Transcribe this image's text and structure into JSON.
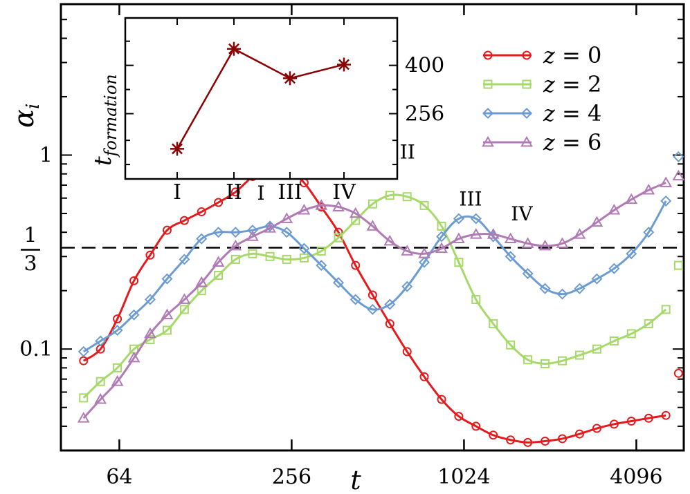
{
  "chart_data": [
    {
      "type": "line",
      "xlabel": "t",
      "ylabel": "α_i",
      "xscale": "log2",
      "yscale": "log",
      "xlim": [
        40,
        6000
      ],
      "ylim": [
        0.03,
        6
      ],
      "x_ticks": [
        64,
        256,
        1024,
        4096
      ],
      "x_tick_labels": [
        "64",
        "256",
        "1024",
        "4096"
      ],
      "y_tick_labels": [
        {
          "value": 1,
          "label": "1"
        },
        {
          "value": 0.333,
          "num": "1",
          "den": "3"
        },
        {
          "value": 0.1,
          "label": "0.1"
        }
      ],
      "reference_line": {
        "value": 0.333,
        "style": "dashed"
      },
      "legend_position": "top-right",
      "series": [
        {
          "name": "z = 0",
          "var": "z",
          "val": "0",
          "color": "#e41a1c",
          "marker": "circle",
          "x": [
            48,
            55,
            63,
            72,
            82,
            94,
            108,
            124,
            142,
            163,
            187,
            215,
            246,
            283,
            325,
            373,
            428,
            491,
            564,
            648,
            744,
            855,
            982,
            1128,
            1296,
            1489,
            1711,
            1966,
            2259,
            2595,
            2982,
            3426,
            3936,
            4523,
            5197
          ],
          "y": [
            0.087,
            0.1,
            0.143,
            0.225,
            0.305,
            0.41,
            0.46,
            0.51,
            0.57,
            0.645,
            0.775,
            0.87,
            0.86,
            0.72,
            0.54,
            0.4,
            0.27,
            0.19,
            0.135,
            0.097,
            0.072,
            0.055,
            0.045,
            0.04,
            0.036,
            0.034,
            0.033,
            0.0335,
            0.0345,
            0.0365,
            0.039,
            0.041,
            0.0425,
            0.044,
            0.0455
          ],
          "end_marker": {
            "x": 5750,
            "y": 0.075
          }
        },
        {
          "name": "z = 2",
          "var": "z",
          "val": "2",
          "color": "#a6d96a",
          "marker": "square",
          "x": [
            48,
            55,
            63,
            72,
            82,
            94,
            108,
            124,
            142,
            163,
            187,
            215,
            246,
            283,
            325,
            373,
            428,
            491,
            564,
            648,
            744,
            855,
            982,
            1128,
            1296,
            1489,
            1711,
            1966,
            2259,
            2595,
            2982,
            3426,
            3936,
            4523,
            5197
          ],
          "y": [
            0.056,
            0.068,
            0.08,
            0.1,
            0.112,
            0.125,
            0.16,
            0.2,
            0.24,
            0.29,
            0.31,
            0.3,
            0.29,
            0.295,
            0.32,
            0.375,
            0.46,
            0.56,
            0.62,
            0.61,
            0.55,
            0.43,
            0.28,
            0.18,
            0.135,
            0.105,
            0.088,
            0.084,
            0.087,
            0.093,
            0.1,
            0.11,
            0.12,
            0.135,
            0.16
          ],
          "end_marker": {
            "x": 5750,
            "y": 0.27
          }
        },
        {
          "name": "z = 4",
          "var": "z",
          "val": "4",
          "color": "#6b9bd1",
          "marker": "diamond",
          "x": [
            48,
            55,
            63,
            72,
            82,
            94,
            108,
            124,
            142,
            163,
            187,
            215,
            246,
            283,
            325,
            373,
            428,
            491,
            564,
            648,
            744,
            855,
            982,
            1128,
            1296,
            1489,
            1711,
            1966,
            2259,
            2595,
            2982,
            3426,
            3936,
            4523,
            5197
          ],
          "y": [
            0.097,
            0.11,
            0.125,
            0.15,
            0.18,
            0.23,
            0.29,
            0.37,
            0.4,
            0.4,
            0.41,
            0.43,
            0.4,
            0.33,
            0.27,
            0.22,
            0.18,
            0.16,
            0.17,
            0.21,
            0.28,
            0.38,
            0.47,
            0.47,
            0.38,
            0.3,
            0.245,
            0.205,
            0.192,
            0.205,
            0.23,
            0.26,
            0.31,
            0.4,
            0.58
          ],
          "end_marker": {
            "x": 5750,
            "y": 0.98
          }
        },
        {
          "name": "z = 6",
          "var": "z",
          "val": "6",
          "color": "#b07ab4",
          "marker": "triangle",
          "x": [
            48,
            55,
            63,
            72,
            82,
            94,
            108,
            124,
            142,
            163,
            187,
            215,
            246,
            283,
            325,
            373,
            428,
            491,
            564,
            648,
            744,
            855,
            982,
            1128,
            1296,
            1489,
            1711,
            1966,
            2259,
            2595,
            2982,
            3426,
            3936,
            4523,
            5197
          ],
          "y": [
            0.044,
            0.055,
            0.068,
            0.09,
            0.12,
            0.15,
            0.18,
            0.22,
            0.28,
            0.34,
            0.38,
            0.42,
            0.47,
            0.52,
            0.55,
            0.54,
            0.5,
            0.43,
            0.36,
            0.32,
            0.31,
            0.33,
            0.37,
            0.39,
            0.39,
            0.37,
            0.35,
            0.34,
            0.35,
            0.39,
            0.45,
            0.52,
            0.59,
            0.66,
            0.72
          ],
          "end_marker": {
            "x": 5750,
            "y": 0.78
          }
        }
      ],
      "annotations": [
        {
          "text": "I",
          "x": 200,
          "y": 0.59
        },
        {
          "text": "II",
          "x": 650,
          "y": 0.96
        },
        {
          "text": "III",
          "x": 1080,
          "y": 0.55
        },
        {
          "text": "IV",
          "x": 1630,
          "y": 0.46
        }
      ]
    },
    {
      "type": "line",
      "role": "inset",
      "xlabel": "",
      "ylabel": "t_formation",
      "ylabel_base": "t",
      "ylabel_sub": "formation",
      "categories": [
        "I",
        "II",
        "III",
        "IV"
      ],
      "values": [
        185,
        466,
        355,
        403
      ],
      "y_ticks": [
        256,
        400
      ],
      "y_tick_labels": [
        "256",
        "400"
      ],
      "ylim": [
        140,
        620
      ],
      "yscale": "log",
      "color": "#8b0000",
      "marker": "asterisk"
    }
  ]
}
